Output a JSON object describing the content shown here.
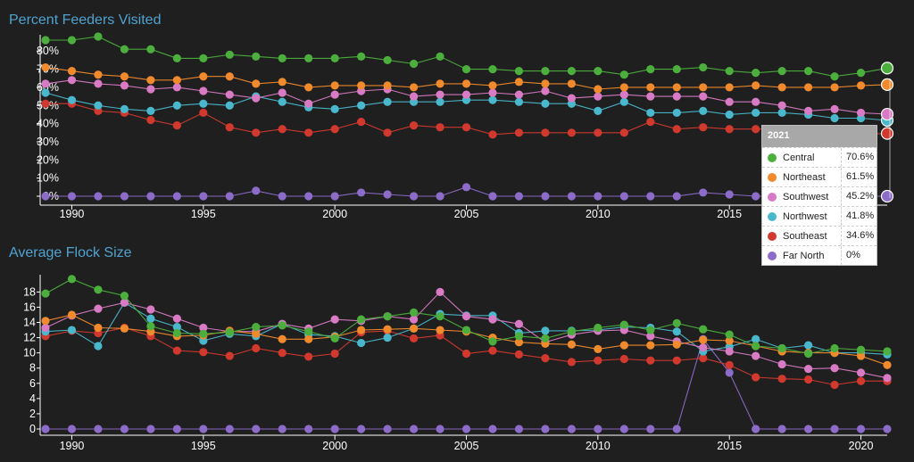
{
  "colors": {
    "Central": "#4caf3d",
    "Northeast": "#f08a2c",
    "Southwest": "#d97bc4",
    "Northwest": "#4ab8cc",
    "Southeast": "#d2392e",
    "Far North": "#8c6bc9"
  },
  "chart_data": [
    {
      "type": "line",
      "title": "Percent Feeders Visited",
      "x_ticks": [
        1990,
        1995,
        2000,
        2005,
        2010,
        2015,
        2020
      ],
      "y_ticks": [
        "0%",
        "10%",
        "20%",
        "30%",
        "40%",
        "50%",
        "60%",
        "70%",
        "80%"
      ],
      "xlim": [
        1989,
        2021
      ],
      "ylim": [
        0,
        87
      ],
      "x": [
        1989,
        1990,
        1991,
        1992,
        1993,
        1994,
        1995,
        1996,
        1997,
        1998,
        1999,
        2000,
        2001,
        2002,
        2003,
        2004,
        2005,
        2006,
        2007,
        2008,
        2009,
        2010,
        2011,
        2012,
        2013,
        2014,
        2015,
        2016,
        2017,
        2018,
        2019,
        2020,
        2021
      ],
      "series": [
        {
          "name": "Central",
          "values": [
            86,
            86,
            88,
            81,
            81,
            76,
            76,
            78,
            77,
            76,
            76,
            76,
            77,
            75,
            73,
            77,
            70,
            70,
            69,
            69,
            69,
            69,
            67,
            70,
            70,
            71,
            69,
            68,
            69,
            69,
            66,
            68,
            70.6
          ]
        },
        {
          "name": "Northeast",
          "values": [
            71,
            69,
            67,
            66,
            64,
            64,
            66,
            66,
            62,
            63,
            60,
            61,
            61,
            61,
            60,
            62,
            62,
            61,
            63,
            62,
            62,
            59,
            60,
            60,
            60,
            60,
            60,
            61,
            60,
            60,
            60,
            61,
            61.5
          ]
        },
        {
          "name": "Southwest",
          "values": [
            62,
            64,
            62,
            61,
            59,
            60,
            58,
            56,
            54,
            57,
            51,
            56,
            58,
            59,
            55,
            56,
            56,
            57,
            56,
            58,
            54,
            55,
            56,
            55,
            55,
            55,
            52,
            52,
            50,
            47,
            48,
            46,
            45.2
          ]
        },
        {
          "name": "Northwest",
          "values": [
            57,
            53,
            50,
            48,
            47,
            50,
            51,
            50,
            55,
            52,
            49,
            48,
            50,
            52,
            52,
            52,
            53,
            53,
            52,
            51,
            51,
            47,
            52,
            46,
            46,
            47,
            45,
            46,
            46,
            45,
            43,
            43,
            41.8
          ]
        },
        {
          "name": "Southeast",
          "values": [
            51,
            51,
            47,
            46,
            42,
            39,
            46,
            38,
            35,
            37,
            35,
            37,
            41,
            35,
            39,
            38,
            38,
            34,
            35,
            35,
            35,
            35,
            35,
            41,
            37,
            38,
            37,
            37,
            37,
            36,
            35,
            34,
            34.6
          ]
        },
        {
          "name": "Far North",
          "values": [
            0,
            0,
            0,
            0,
            0,
            0,
            0,
            0,
            3,
            0,
            0,
            0,
            2,
            1,
            0,
            0,
            5,
            0,
            0,
            0,
            0,
            0,
            0,
            0,
            0,
            2,
            1,
            0,
            0,
            0,
            0,
            0,
            0
          ]
        }
      ]
    },
    {
      "type": "line",
      "title": "Average Flock Size",
      "x_ticks": [
        1990,
        1995,
        2000,
        2005,
        2010,
        2015,
        2020
      ],
      "y_ticks": [
        "0",
        "2",
        "4",
        "6",
        "8",
        "10",
        "12",
        "14",
        "16",
        "18"
      ],
      "xlim": [
        1989,
        2021
      ],
      "ylim": [
        0,
        19.8
      ],
      "x": [
        1989,
        1990,
        1991,
        1992,
        1993,
        1994,
        1995,
        1996,
        1997,
        1998,
        1999,
        2000,
        2001,
        2002,
        2003,
        2004,
        2005,
        2006,
        2007,
        2008,
        2009,
        2010,
        2011,
        2012,
        2013,
        2014,
        2015,
        2016,
        2017,
        2018,
        2019,
        2020,
        2021
      ],
      "series": [
        {
          "name": "Central",
          "values": [
            17.8,
            19.7,
            18.3,
            17.5,
            13.5,
            12.6,
            12.5,
            12.7,
            13.4,
            13.6,
            12.8,
            11.9,
            14.4,
            14.8,
            15.3,
            14.8,
            13.0,
            11.5,
            12.2,
            11.9,
            12.8,
            13.3,
            13.7,
            13.0,
            13.9,
            13.1,
            12.4,
            10.9,
            10.6,
            9.9,
            10.6,
            10.4,
            10.2
          ]
        },
        {
          "name": "Northeast",
          "values": [
            14.2,
            15.0,
            13.3,
            13.2,
            12.8,
            12.2,
            12.3,
            12.9,
            12.5,
            11.8,
            11.8,
            12.1,
            13.0,
            13.1,
            13.2,
            13.0,
            12.8,
            12.0,
            11.4,
            11.2,
            11.1,
            10.5,
            11.0,
            11.0,
            11.1,
            11.7,
            11.6,
            10.9,
            10.2,
            10.0,
            10.0,
            9.6,
            8.4
          ]
        },
        {
          "name": "Southwest",
          "values": [
            13.3,
            14.9,
            15.8,
            16.6,
            15.7,
            14.5,
            13.3,
            12.8,
            12.8,
            13.8,
            13.2,
            14.4,
            14.2,
            14.8,
            14.4,
            18.0,
            14.8,
            14.4,
            13.8,
            11.4,
            12.4,
            12.9,
            13.0,
            12.2,
            11.5,
            10.7,
            10.2,
            9.6,
            8.5,
            7.9,
            8.0,
            7.4,
            6.7
          ]
        },
        {
          "name": "Northwest",
          "values": [
            12.8,
            13.0,
            10.9,
            16.6,
            14.5,
            13.4,
            11.6,
            12.5,
            12.2,
            13.8,
            12.4,
            12.2,
            11.3,
            12.0,
            13.2,
            15.1,
            14.9,
            14.9,
            12.6,
            12.9,
            12.9,
            13.0,
            13.4,
            13.3,
            12.8,
            10.2,
            10.8,
            11.8,
            10.6,
            11.0,
            10.0,
            10.0,
            9.8
          ]
        },
        {
          "name": "Southeast",
          "values": [
            12.2,
            12.9,
            12.6,
            13.3,
            12.2,
            10.3,
            10.1,
            9.6,
            10.6,
            10.0,
            9.5,
            9.9,
            12.7,
            12.9,
            11.9,
            12.3,
            9.9,
            10.3,
            9.8,
            9.3,
            8.8,
            9.0,
            9.2,
            9.0,
            9.0,
            9.3,
            8.4,
            6.8,
            6.6,
            6.5,
            5.8,
            6.3,
            6.3
          ]
        },
        {
          "name": "Far North",
          "values": [
            0,
            0,
            0,
            0,
            0,
            0,
            0,
            0,
            0,
            0,
            0,
            0,
            0,
            0,
            0,
            0,
            0,
            0,
            0,
            0,
            0,
            0,
            0,
            0,
            0,
            11.8,
            7.4,
            0,
            0,
            0,
            0,
            0,
            0
          ]
        }
      ]
    }
  ],
  "tooltip": {
    "year": "2021",
    "rows": [
      {
        "name": "Central",
        "value": "70.6%"
      },
      {
        "name": "Northeast",
        "value": "61.5%"
      },
      {
        "name": "Southwest",
        "value": "45.2%"
      },
      {
        "name": "Northwest",
        "value": "41.8%"
      },
      {
        "name": "Southeast",
        "value": "34.6%"
      },
      {
        "name": "Far North",
        "value": "0%"
      }
    ]
  }
}
